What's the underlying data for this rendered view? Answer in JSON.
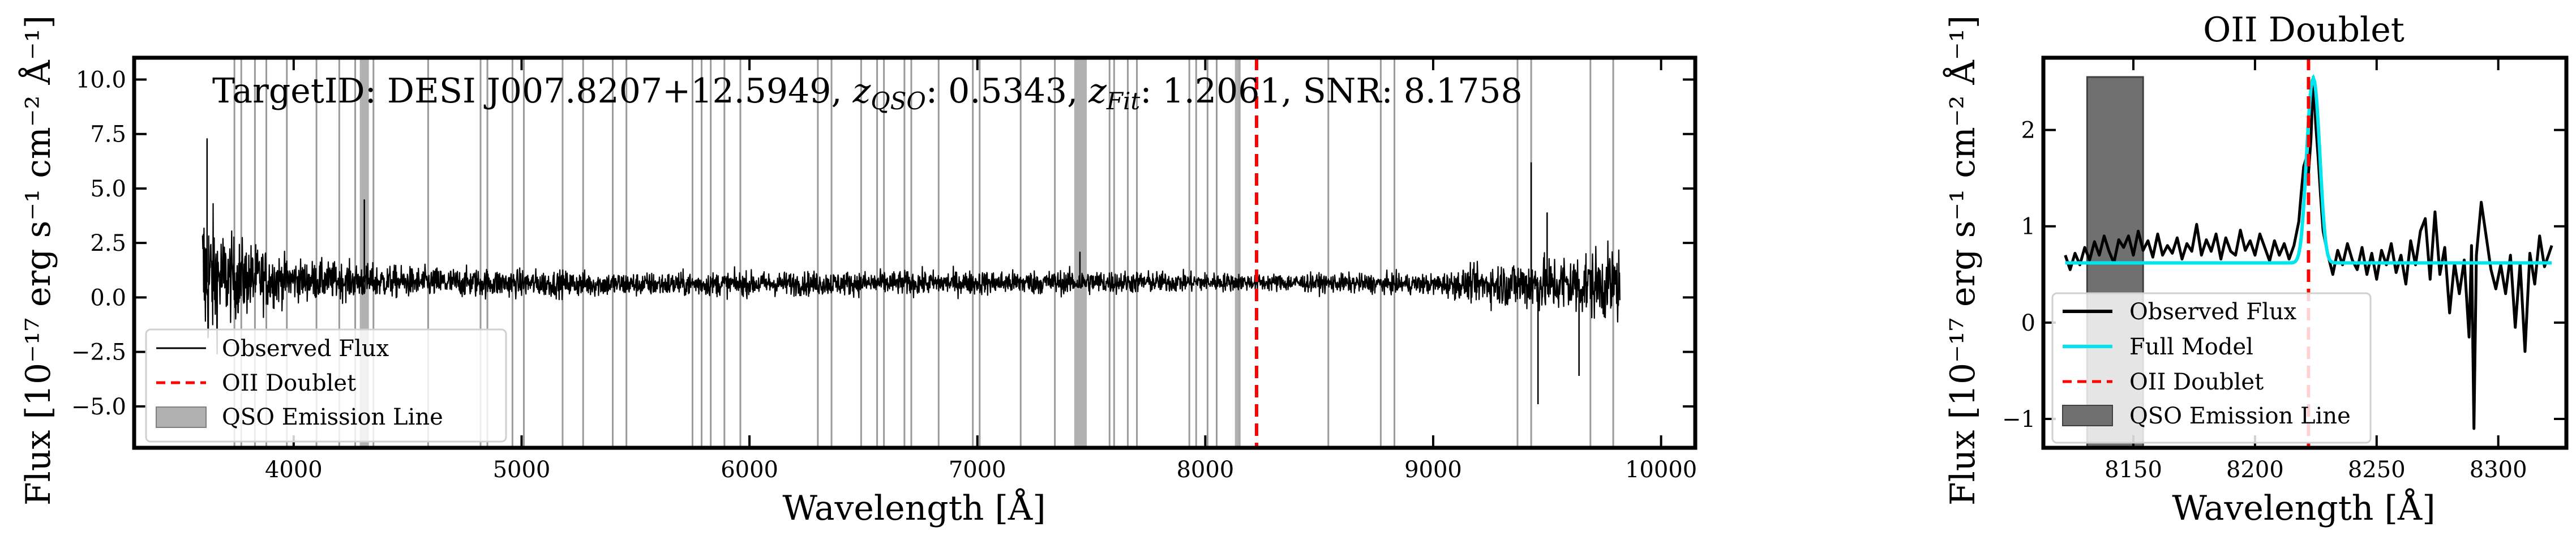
{
  "chart_data": [
    {
      "type": "line",
      "title_parts": {
        "prefix": "TargetID: DESI J007.8207+12.5949, ",
        "zqso_sym": "z",
        "zqso_sub": "QSO",
        "zqso_val": ": 0.5343, ",
        "zfit_sym": "z",
        "zfit_sub": "Fit",
        "zfit_val": ": 1.2061, ",
        "snr": "SNR: 8.1758"
      },
      "xlabel": "Wavelength [Å]",
      "ylabel": "Flux [10⁻¹⁷ erg s⁻¹ cm⁻² Å⁻¹]",
      "xlim": [
        3300,
        10150
      ],
      "ylim": [
        -6.9,
        11.0
      ],
      "xticks": [
        4000,
        5000,
        6000,
        7000,
        8000,
        9000,
        10000
      ],
      "xtick_labels": [
        "4000",
        "5000",
        "6000",
        "7000",
        "8000",
        "9000",
        "10000"
      ],
      "yticks": [
        -5.0,
        -2.5,
        0.0,
        2.5,
        5.0,
        7.5,
        10.0
      ],
      "ytick_labels": [
        "−5.0",
        "−2.5",
        "0.0",
        "2.5",
        "5.0",
        "7.5",
        "10.0"
      ],
      "legend_position": "lower-left",
      "series": [
        {
          "name": "Observed Flux",
          "color": "#000000",
          "x_range": [
            3600,
            9820
          ],
          "noise_profile": [
            {
              "x": 3600,
              "noise": 5.0,
              "baseline": 0.9
            },
            {
              "x": 3700,
              "noise": 2.6,
              "baseline": 0.9
            },
            {
              "x": 4000,
              "noise": 1.2,
              "baseline": 0.8
            },
            {
              "x": 4500,
              "noise": 0.9,
              "baseline": 0.7
            },
            {
              "x": 5500,
              "noise": 0.7,
              "baseline": 0.6
            },
            {
              "x": 7500,
              "noise": 0.7,
              "baseline": 0.7
            },
            {
              "x": 8200,
              "noise": 0.5,
              "baseline": 0.7
            },
            {
              "x": 9000,
              "noise": 0.6,
              "baseline": 0.6
            },
            {
              "x": 9350,
              "noise": 1.4,
              "baseline": 0.6
            },
            {
              "x": 9820,
              "noise": 2.2,
              "baseline": 0.6
            }
          ],
          "spikes": [
            {
              "x": 3620,
              "y": 7.3
            },
            {
              "x": 4310,
              "y": 4.5
            },
            {
              "x": 7450,
              "y": 2.1
            },
            {
              "x": 9430,
              "y": 6.2
            },
            {
              "x": 9460,
              "y": -4.9
            },
            {
              "x": 9500,
              "y": 3.9
            },
            {
              "x": 9640,
              "y": -3.6
            }
          ]
        },
        {
          "name": "OII Doublet",
          "color": "#ff0000",
          "style": "dashed",
          "x": 8225
        },
        {
          "name": "QSO Emission Line",
          "color": "#a0a0a0",
          "bands": [
            [
              4290,
              4330
            ],
            [
              7425,
              7480
            ],
            [
              8130,
              8155
            ]
          ]
        }
      ],
      "masked_lines_x": [
        3740,
        3770,
        3830,
        3880,
        3970,
        4100,
        4200,
        4270,
        4350,
        4590,
        4820,
        4850,
        4960,
        5010,
        5180,
        5270,
        5400,
        5460,
        5750,
        5790,
        5830,
        5890,
        5960,
        6300,
        6360,
        6490,
        6560,
        6590,
        6680,
        6710,
        6830,
        6980,
        7010,
        7190,
        7340,
        7580,
        7600,
        7660,
        7700,
        7930,
        7960,
        8010,
        8050,
        8150,
        8540,
        8770,
        8830,
        9370,
        9430,
        9690,
        9790
      ]
    },
    {
      "type": "line",
      "title": "OII Doublet",
      "xlabel": "Wavelength [Å]",
      "ylabel": "Flux [10⁻¹⁷ erg s⁻¹ cm⁻² Å⁻¹]",
      "xlim": [
        8113,
        8328
      ],
      "ylim": [
        -1.3,
        2.75
      ],
      "xticks": [
        8150,
        8200,
        8250,
        8300
      ],
      "xtick_labels": [
        "8150",
        "8200",
        "8250",
        "8300"
      ],
      "yticks": [
        -1,
        0,
        1,
        2
      ],
      "ytick_labels": [
        "−1",
        "0",
        "1",
        "2"
      ],
      "legend_position": "lower-left",
      "series": [
        {
          "name": "Observed Flux",
          "color": "#000000",
          "x_range": [
            8122,
            8322
          ]
        },
        {
          "name": "Full Model",
          "color": "#00e5ee",
          "continuum": 0.62,
          "peaks": [
            {
              "center": 8222.5,
              "amplitude": 1.2,
              "sigma": 2.0
            },
            {
              "center": 8225.3,
              "amplitude": 1.25,
              "sigma": 2.0
            }
          ],
          "x_range": [
            8122,
            8322
          ]
        },
        {
          "name": "OII Doublet",
          "color": "#ff0000",
          "style": "dashed",
          "x": 8222
        },
        {
          "name": "QSO Emission Line",
          "color": "#707070",
          "bands": [
            [
              8131,
              8154
            ]
          ],
          "y_top": 2.55
        }
      ],
      "observed_points": [
        [
          8122,
          0.7
        ],
        [
          8124,
          0.55
        ],
        [
          8126,
          0.72
        ],
        [
          8128,
          0.6
        ],
        [
          8130,
          0.78
        ],
        [
          8132,
          0.65
        ],
        [
          8134,
          0.84
        ],
        [
          8136,
          0.7
        ],
        [
          8138,
          0.9
        ],
        [
          8140,
          0.74
        ],
        [
          8142,
          0.62
        ],
        [
          8144,
          0.86
        ],
        [
          8146,
          0.78
        ],
        [
          8148,
          0.9
        ],
        [
          8150,
          0.7
        ],
        [
          8152,
          0.95
        ],
        [
          8154,
          0.75
        ],
        [
          8156,
          0.85
        ],
        [
          8158,
          0.68
        ],
        [
          8160,
          0.92
        ],
        [
          8162,
          0.7
        ],
        [
          8164,
          0.8
        ],
        [
          8166,
          0.72
        ],
        [
          8168,
          0.88
        ],
        [
          8170,
          0.66
        ],
        [
          8172,
          0.82
        ],
        [
          8174,
          0.74
        ],
        [
          8176,
          1.02
        ],
        [
          8178,
          0.7
        ],
        [
          8180,
          0.86
        ],
        [
          8182,
          0.74
        ],
        [
          8184,
          0.92
        ],
        [
          8186,
          0.66
        ],
        [
          8188,
          0.88
        ],
        [
          8190,
          0.74
        ],
        [
          8192,
          0.7
        ],
        [
          8194,
          0.96
        ],
        [
          8196,
          0.75
        ],
        [
          8198,
          0.85
        ],
        [
          8200,
          0.7
        ],
        [
          8202,
          0.92
        ],
        [
          8204,
          0.78
        ],
        [
          8206,
          0.64
        ],
        [
          8208,
          0.85
        ],
        [
          8210,
          0.7
        ],
        [
          8212,
          0.82
        ],
        [
          8214,
          0.66
        ],
        [
          8216,
          0.8
        ],
        [
          8218,
          1.05
        ],
        [
          8219,
          1.35
        ],
        [
          8220,
          1.62
        ],
        [
          8221,
          1.7
        ],
        [
          8222,
          1.55
        ],
        [
          8223,
          1.9
        ],
        [
          8224,
          2.55
        ],
        [
          8225,
          2.05
        ],
        [
          8226,
          1.7
        ],
        [
          8227,
          1.3
        ],
        [
          8228,
          0.95
        ],
        [
          8230,
          0.7
        ],
        [
          8232,
          0.5
        ],
        [
          8234,
          0.75
        ],
        [
          8236,
          0.6
        ],
        [
          8238,
          0.82
        ],
        [
          8240,
          0.65
        ],
        [
          8242,
          0.55
        ],
        [
          8244,
          0.78
        ],
        [
          8246,
          0.5
        ],
        [
          8248,
          0.72
        ],
        [
          8250,
          0.45
        ],
        [
          8252,
          0.75
        ],
        [
          8254,
          0.6
        ],
        [
          8256,
          0.82
        ],
        [
          8258,
          0.52
        ],
        [
          8260,
          0.7
        ],
        [
          8262,
          0.4
        ],
        [
          8264,
          0.85
        ],
        [
          8266,
          0.6
        ],
        [
          8268,
          0.95
        ],
        [
          8270,
          1.08
        ],
        [
          8272,
          0.45
        ],
        [
          8274,
          1.15
        ],
        [
          8276,
          0.5
        ],
        [
          8278,
          0.78
        ],
        [
          8280,
          0.1
        ],
        [
          8282,
          0.62
        ],
        [
          8284,
          0.3
        ],
        [
          8286,
          0.65
        ],
        [
          8288,
          -0.15
        ],
        [
          8289,
          0.8
        ],
        [
          8290,
          -1.1
        ],
        [
          8291,
          0.7
        ],
        [
          8293,
          1.25
        ],
        [
          8295,
          0.9
        ],
        [
          8297,
          0.55
        ],
        [
          8299,
          0.35
        ],
        [
          8301,
          0.6
        ],
        [
          8303,
          0.3
        ],
        [
          8305,
          0.7
        ],
        [
          8307,
          -0.05
        ],
        [
          8309,
          0.62
        ],
        [
          8311,
          -0.3
        ],
        [
          8313,
          0.72
        ],
        [
          8315,
          0.4
        ],
        [
          8317,
          0.9
        ],
        [
          8319,
          0.58
        ],
        [
          8322,
          0.8
        ]
      ]
    }
  ]
}
